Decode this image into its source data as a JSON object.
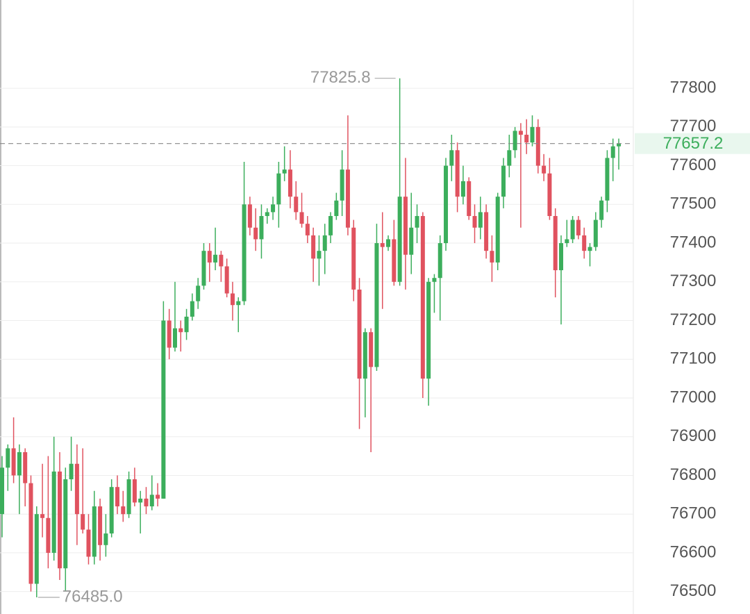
{
  "chart_data": {
    "type": "candlestick",
    "open": [
      76700,
      76820,
      76870,
      76800,
      76860,
      76780,
      76520,
      76700,
      76690,
      76600,
      76810,
      76560,
      76790,
      76830,
      76700,
      76660,
      76590,
      76720,
      76620,
      76650,
      76770,
      76720,
      76700,
      76790,
      76730,
      76740,
      76720,
      76750,
      76740,
      77200,
      77130,
      77180,
      77170,
      77210,
      77250,
      77290,
      77380,
      77350,
      77370,
      77340,
      77270,
      77240,
      77250,
      77500,
      77440,
      77410,
      77470,
      77480,
      77500,
      77580,
      77590,
      77520,
      77480,
      77450,
      77420,
      77360,
      77380,
      77420,
      77470,
      77510,
      77590,
      77440,
      77280,
      77050,
      77170,
      77080,
      77400,
      77390,
      77410,
      77300,
      77520,
      77370,
      77440,
      77470,
      77050,
      77300,
      77310,
      77400,
      77600,
      77640,
      77520,
      77560,
      77470,
      77440,
      77480,
      77380,
      77350,
      77520,
      77600,
      77640,
      77690,
      77680,
      77660,
      77700,
      77600,
      77580,
      77470,
      77330,
      77400,
      77410,
      77460,
      77420,
      77380,
      77390,
      77460,
      77510,
      77620,
      77650
    ],
    "high": [
      76850,
      76880,
      76950,
      76880,
      76870,
      76800,
      76720,
      76830,
      76850,
      76900,
      76860,
      76820,
      76900,
      76880,
      76870,
      76700,
      76760,
      76740,
      76700,
      76790,
      76800,
      76760,
      76810,
      76820,
      76760,
      76770,
      76800,
      76780,
      77250,
      77230,
      77300,
      77200,
      77230,
      77270,
      77310,
      77400,
      77400,
      77440,
      77380,
      77360,
      77300,
      77260,
      77610,
      77520,
      77490,
      77500,
      77490,
      77520,
      77610,
      77650,
      77640,
      77560,
      77530,
      77470,
      77440,
      77420,
      77450,
      77480,
      77530,
      77640,
      77730,
      77460,
      77310,
      77180,
      77180,
      77450,
      77480,
      77420,
      77460,
      77825.8,
      77620,
      77530,
      77500,
      77480,
      77310,
      77320,
      77420,
      77620,
      77680,
      77660,
      77600,
      77570,
      77500,
      77520,
      77500,
      77420,
      77530,
      77620,
      77680,
      77700,
      77710,
      77720,
      77730,
      77720,
      77630,
      77620,
      77490,
      77420,
      77460,
      77470,
      77470,
      77440,
      77400,
      77480,
      77520,
      77640,
      77670,
      77670
    ],
    "low": [
      76640,
      76760,
      76780,
      76700,
      76720,
      76500,
      76485,
      76640,
      76560,
      76580,
      76530,
      76500,
      76760,
      76620,
      76650,
      76570,
      76570,
      76580,
      76590,
      76640,
      76700,
      76680,
      76690,
      76720,
      76650,
      76700,
      76710,
      76720,
      76740,
      77100,
      77120,
      77120,
      77150,
      77200,
      77230,
      77280,
      77300,
      77330,
      77300,
      77260,
      77200,
      77170,
      77240,
      77420,
      77380,
      77360,
      77450,
      77460,
      77440,
      77560,
      77490,
      77460,
      77440,
      77400,
      77300,
      77290,
      77320,
      77400,
      77460,
      77470,
      77420,
      77250,
      76920,
      76950,
      76860,
      77070,
      77230,
      77380,
      77290,
      77290,
      77280,
      77320,
      77400,
      77000,
      76980,
      77220,
      77200,
      77380,
      77560,
      77480,
      77500,
      77460,
      77400,
      77410,
      77360,
      77300,
      77330,
      77490,
      77570,
      77620,
      77440,
      77630,
      77650,
      77580,
      77560,
      77460,
      77260,
      77190,
      77390,
      77400,
      77410,
      77360,
      77340,
      77380,
      77440,
      77480,
      77560,
      77590
    ],
    "close": [
      76820,
      76870,
      76800,
      76860,
      76780,
      76520,
      76700,
      76690,
      76600,
      76810,
      76560,
      76790,
      76830,
      76700,
      76660,
      76590,
      76720,
      76620,
      76650,
      76770,
      76720,
      76700,
      76790,
      76730,
      76740,
      76720,
      76750,
      76740,
      77200,
      77130,
      77180,
      77170,
      77210,
      77250,
      77290,
      77380,
      77350,
      77370,
      77340,
      77270,
      77240,
      77250,
      77500,
      77440,
      77410,
      77470,
      77480,
      77500,
      77580,
      77590,
      77520,
      77480,
      77450,
      77420,
      77360,
      77380,
      77420,
      77470,
      77510,
      77590,
      77440,
      77280,
      77050,
      77170,
      77080,
      77400,
      77390,
      77410,
      77300,
      77520,
      77370,
      77440,
      77470,
      77050,
      77300,
      77310,
      77400,
      77600,
      77640,
      77520,
      77560,
      77470,
      77440,
      77480,
      77380,
      77350,
      77520,
      77600,
      77640,
      77690,
      77680,
      77660,
      77700,
      77600,
      77580,
      77470,
      77330,
      77400,
      77410,
      77460,
      77420,
      77380,
      77390,
      77460,
      77510,
      77620,
      77650,
      77657.2
    ],
    "up_color": "#3cae5c",
    "down_color": "#e0525f",
    "ylim": [
      76442,
      78028
    ],
    "yticks": [
      76500,
      76600,
      76700,
      76800,
      76900,
      77000,
      77100,
      77200,
      77300,
      77400,
      77500,
      77600,
      77700,
      77800
    ],
    "grid": true,
    "last_price": 77657.2,
    "annotations": [
      {
        "index": 69,
        "value": 77825.8,
        "label": "77825.8",
        "side": "left"
      },
      {
        "index": 6,
        "value": 76485,
        "label": "76485.0",
        "side": "right"
      }
    ]
  }
}
